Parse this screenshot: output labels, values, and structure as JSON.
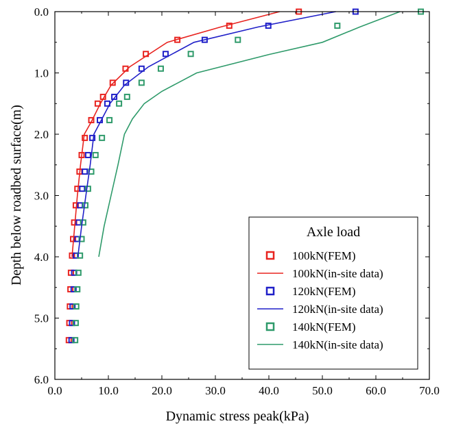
{
  "chart_data": {
    "type": "scatter",
    "xlabel": "Dynamic stress peak(kPa)",
    "ylabel": "Depth below roadbed surface(m)",
    "xlim": [
      0,
      70
    ],
    "ylim": [
      0,
      6
    ],
    "y_inverted": true,
    "x_axis_position": "top-labels-bottom",
    "x_ticks": [
      "0.0",
      "10.0",
      "20.0",
      "30.0",
      "40.0",
      "50.0",
      "60.0",
      "70.0"
    ],
    "y_ticks": [
      "0.0",
      "1.0",
      "2.0",
      "3.0",
      "4.0",
      "5.0",
      "6.0"
    ],
    "grid": false,
    "legend": {
      "title": "Axle load",
      "placement": "bottom-right",
      "entries": [
        {
          "label": "100kN(FEM)",
          "kind": "marker",
          "color": "#e8231f"
        },
        {
          "label": "100kN(in-site data)",
          "kind": "line",
          "color": "#e8231f"
        },
        {
          "label": "120kN(FEM)",
          "kind": "marker",
          "color": "#1f1fc8"
        },
        {
          "label": "120kN(in-site data)",
          "kind": "line",
          "color": "#1f1fc8"
        },
        {
          "label": "140kN(FEM)",
          "kind": "marker",
          "color": "#2e9a6a"
        },
        {
          "label": "140kN(in-site data)",
          "kind": "line",
          "color": "#2e9a6a"
        }
      ]
    },
    "series": [
      {
        "name": "100kN(FEM)",
        "kind": "marker",
        "color": "#e8231f",
        "points": [
          [
            45.6,
            0.0
          ],
          [
            32.6,
            0.23
          ],
          [
            22.9,
            0.46
          ],
          [
            17.0,
            0.69
          ],
          [
            13.2,
            0.93
          ],
          [
            10.8,
            1.16
          ],
          [
            9.0,
            1.39
          ],
          [
            8.0,
            1.5
          ],
          [
            6.8,
            1.77
          ],
          [
            5.6,
            2.06
          ],
          [
            5.0,
            2.34
          ],
          [
            4.6,
            2.61
          ],
          [
            4.2,
            2.89
          ],
          [
            3.9,
            3.16
          ],
          [
            3.6,
            3.44
          ],
          [
            3.4,
            3.71
          ],
          [
            3.2,
            3.98
          ],
          [
            3.0,
            4.26
          ],
          [
            2.9,
            4.53
          ],
          [
            2.8,
            4.81
          ],
          [
            2.7,
            5.08
          ],
          [
            2.6,
            5.36
          ]
        ]
      },
      {
        "name": "120kN(FEM)",
        "kind": "marker",
        "color": "#1f1fc8",
        "points": [
          [
            56.2,
            0.0
          ],
          [
            39.9,
            0.23
          ],
          [
            28.0,
            0.46
          ],
          [
            20.7,
            0.69
          ],
          [
            16.2,
            0.93
          ],
          [
            13.3,
            1.16
          ],
          [
            11.1,
            1.39
          ],
          [
            9.8,
            1.5
          ],
          [
            8.4,
            1.77
          ],
          [
            7.0,
            2.06
          ],
          [
            6.2,
            2.34
          ],
          [
            5.6,
            2.61
          ],
          [
            5.1,
            2.89
          ],
          [
            4.7,
            3.16
          ],
          [
            4.4,
            3.44
          ],
          [
            4.1,
            3.71
          ],
          [
            3.9,
            3.98
          ],
          [
            3.6,
            4.26
          ],
          [
            3.5,
            4.53
          ],
          [
            3.3,
            4.81
          ],
          [
            3.2,
            5.08
          ],
          [
            3.1,
            5.36
          ]
        ]
      },
      {
        "name": "140kN(FEM)",
        "kind": "marker",
        "color": "#2e9a6a",
        "points": [
          [
            68.4,
            0.0
          ],
          [
            52.8,
            0.23
          ],
          [
            34.2,
            0.46
          ],
          [
            25.4,
            0.69
          ],
          [
            19.8,
            0.93
          ],
          [
            16.2,
            1.16
          ],
          [
            13.5,
            1.39
          ],
          [
            12.0,
            1.5
          ],
          [
            10.2,
            1.77
          ],
          [
            8.8,
            2.06
          ],
          [
            7.6,
            2.34
          ],
          [
            6.8,
            2.61
          ],
          [
            6.2,
            2.89
          ],
          [
            5.7,
            3.16
          ],
          [
            5.3,
            3.44
          ],
          [
            5.0,
            3.71
          ],
          [
            4.7,
            3.98
          ],
          [
            4.4,
            4.26
          ],
          [
            4.2,
            4.53
          ],
          [
            4.0,
            4.81
          ],
          [
            3.9,
            5.08
          ],
          [
            3.8,
            5.36
          ]
        ]
      },
      {
        "name": "100kN(in-site data)",
        "kind": "line",
        "color": "#e8231f",
        "points": [
          [
            42.0,
            0.0
          ],
          [
            31.0,
            0.25
          ],
          [
            21.0,
            0.5
          ],
          [
            14.0,
            0.9
          ],
          [
            10.5,
            1.2
          ],
          [
            8.5,
            1.5
          ],
          [
            6.8,
            1.8
          ],
          [
            5.5,
            2.0
          ],
          [
            4.8,
            2.5
          ],
          [
            4.2,
            3.0
          ],
          [
            3.7,
            3.5
          ],
          [
            3.2,
            4.0
          ]
        ]
      },
      {
        "name": "120kN(in-site data)",
        "kind": "line",
        "color": "#1f1fc8",
        "points": [
          [
            52.5,
            0.0
          ],
          [
            38.0,
            0.25
          ],
          [
            26.0,
            0.5
          ],
          [
            17.5,
            0.9
          ],
          [
            13.0,
            1.2
          ],
          [
            10.3,
            1.5
          ],
          [
            8.5,
            1.8
          ],
          [
            7.3,
            2.0
          ],
          [
            6.6,
            2.5
          ],
          [
            5.8,
            3.0
          ],
          [
            5.0,
            3.5
          ],
          [
            4.3,
            4.0
          ]
        ]
      },
      {
        "name": "140kN(in-site data)",
        "kind": "line",
        "color": "#2e9a6a",
        "points": [
          [
            64.5,
            0.0
          ],
          [
            57.0,
            0.25
          ],
          [
            50.0,
            0.5
          ],
          [
            40.0,
            0.7
          ],
          [
            26.5,
            1.0
          ],
          [
            20.0,
            1.3
          ],
          [
            16.7,
            1.5
          ],
          [
            14.5,
            1.75
          ],
          [
            13.0,
            2.0
          ],
          [
            11.8,
            2.5
          ],
          [
            10.5,
            3.0
          ],
          [
            9.2,
            3.5
          ],
          [
            8.2,
            4.0
          ]
        ]
      }
    ]
  }
}
